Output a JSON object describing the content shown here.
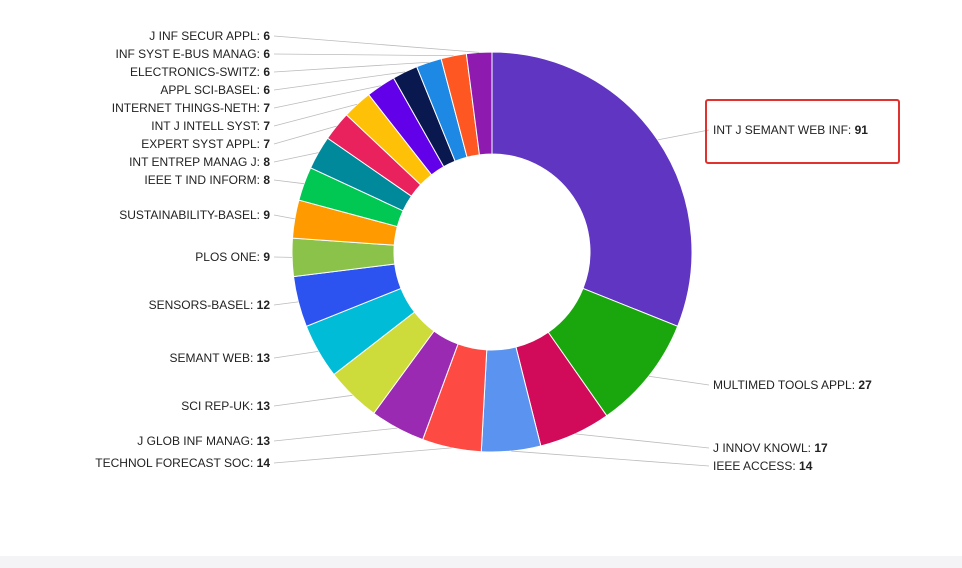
{
  "chart_data": {
    "type": "pie",
    "donut": true,
    "highlighted": "INT J SEMANT WEB INF",
    "highlight_color": "#e0322e",
    "slices": [
      {
        "label": "INT J SEMANT WEB INF",
        "value": 91,
        "color": "#5f35c1"
      },
      {
        "label": "MULTIMED TOOLS APPL",
        "value": 27,
        "color": "#1aa70d"
      },
      {
        "label": "J INNOV KNOWL",
        "value": 17,
        "color": "#d10a5a"
      },
      {
        "label": "IEEE ACCESS",
        "value": 14,
        "color": "#5b93f0"
      },
      {
        "label": "TECHNOL FORECAST SOC",
        "value": 14,
        "color": "#fd4b43"
      },
      {
        "label": "J GLOB INF MANAG",
        "value": 13,
        "color": "#9b2ab2"
      },
      {
        "label": "SCI REP-UK",
        "value": 13,
        "color": "#cddc3a"
      },
      {
        "label": "SEMANT WEB",
        "value": 13,
        "color": "#00bcd6"
      },
      {
        "label": "SENSORS-BASEL",
        "value": 12,
        "color": "#2c53f0"
      },
      {
        "label": "PLOS ONE",
        "value": 9,
        "color": "#8bc34a"
      },
      {
        "label": "SUSTAINABILITY-BASEL",
        "value": 9,
        "color": "#ff9b00"
      },
      {
        "label": "IEEE T IND INFORM",
        "value": 8,
        "color": "#00c853"
      },
      {
        "label": "INT ENTREP MANAG J",
        "value": 8,
        "color": "#00899b"
      },
      {
        "label": "EXPERT SYST APPL",
        "value": 7,
        "color": "#e9225e"
      },
      {
        "label": "INT J INTELL SYST",
        "value": 7,
        "color": "#ffc107"
      },
      {
        "label": "INTERNET THINGS-NETH",
        "value": 7,
        "color": "#6200ea"
      },
      {
        "label": "APPL SCI-BASEL",
        "value": 6,
        "color": "#0a1850"
      },
      {
        "label": "ELECTRONICS-SWITZ",
        "value": 6,
        "color": "#1e88e5"
      },
      {
        "label": "INF SYST E-BUS MANAG",
        "value": 6,
        "color": "#ff5722"
      },
      {
        "label": "J INF SECUR APPL",
        "value": 6,
        "color": "#8e1ab0"
      }
    ]
  }
}
